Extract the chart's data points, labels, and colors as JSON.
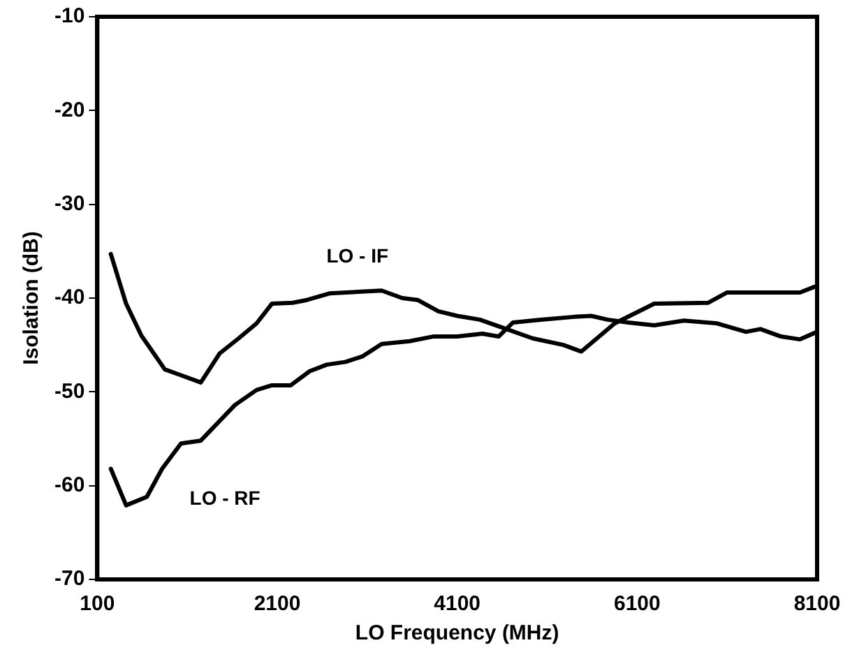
{
  "chart_data": {
    "type": "line",
    "xlabel": "LO Frequency (MHz)",
    "ylabel": "Isolation (dB)",
    "xlim": [
      100,
      8100
    ],
    "xticks": [
      100,
      2100,
      4100,
      6100,
      8100
    ],
    "ylim": [
      -70,
      -10
    ],
    "yticks": [
      -70,
      -60,
      -50,
      -40,
      -30,
      -20,
      -10
    ],
    "grid": false,
    "legend": false,
    "marker": "none",
    "line_style": "solid",
    "series": [
      {
        "name": "LO - IF",
        "color": "#000000",
        "x": [
          250,
          420,
          590,
          850,
          1250,
          1460,
          1670,
          1870,
          2040,
          2270,
          2430,
          2680,
          3260,
          3490,
          3660,
          3890,
          4100,
          4350,
          4560,
          4940,
          5280,
          5480,
          5850,
          6290,
          6890,
          7100,
          7910,
          8070
        ],
        "values": [
          -35.3,
          -40.6,
          -44,
          -47.6,
          -49,
          -45.9,
          -44.3,
          -42.7,
          -40.6,
          -40.5,
          -40.2,
          -39.5,
          -39.2,
          -40,
          -40.2,
          -41.4,
          -41.9,
          -42.3,
          -43,
          -44.3,
          -45,
          -45.7,
          -42.7,
          -40.6,
          -40.5,
          -39.4,
          -39.4,
          -38.8
        ]
      },
      {
        "name": "LO - RF",
        "color": "#000000",
        "x": [
          250,
          420,
          650,
          820,
          1030,
          1250,
          1630,
          1870,
          2040,
          2250,
          2460,
          2650,
          2860,
          3050,
          3260,
          3570,
          3830,
          4100,
          4380,
          4560,
          4720,
          5030,
          5400,
          5590,
          5770,
          6000,
          6290,
          6620,
          6990,
          7310,
          7470,
          7700,
          7910,
          8100
        ],
        "values": [
          -58.2,
          -62.1,
          -61.2,
          -58.2,
          -55.5,
          -55.2,
          -51.4,
          -49.8,
          -49.3,
          -49.3,
          -47.8,
          -47.1,
          -46.8,
          -46.2,
          -44.9,
          -44.6,
          -44.1,
          -44.1,
          -43.8,
          -44.1,
          -42.6,
          -42.3,
          -42,
          -41.9,
          -42.3,
          -42.6,
          -42.9,
          -42.4,
          -42.7,
          -43.6,
          -43.3,
          -44.1,
          -44.4,
          -43.6
        ]
      }
    ]
  }
}
